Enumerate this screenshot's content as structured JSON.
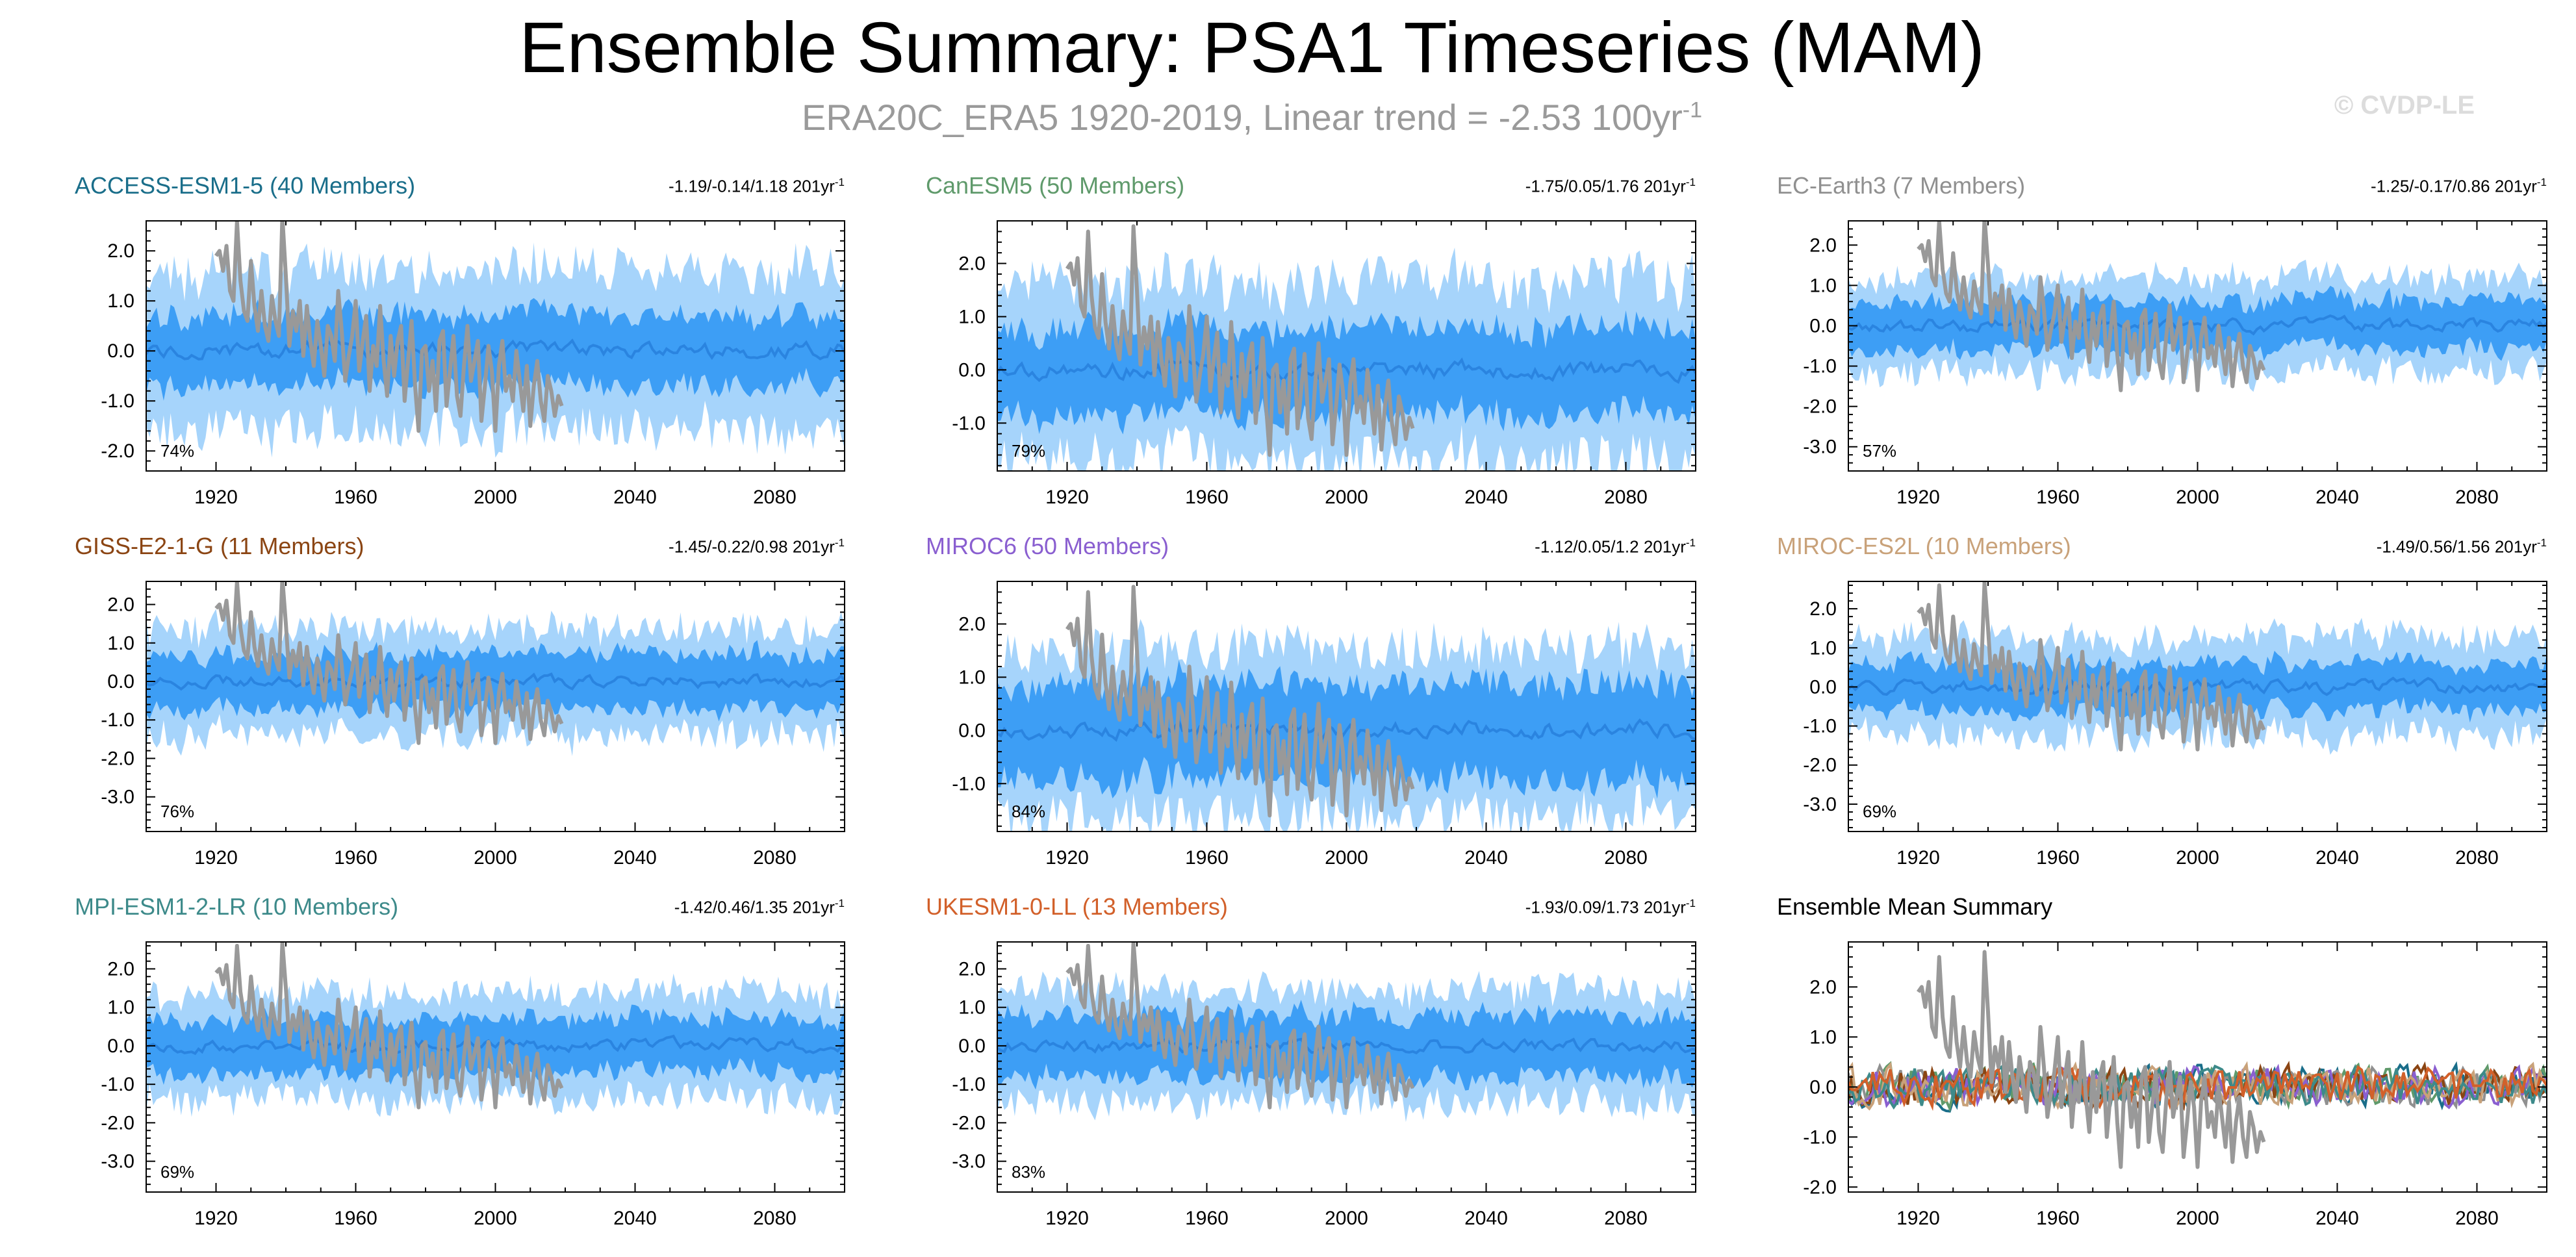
{
  "title": "Ensemble Summary: PSA1 Timeseries (MAM)",
  "subtitle": {
    "text": "ERA20C_ERA5 1920-2019, Linear trend = -2.53 100yr",
    "exponent": "-1"
  },
  "watermark": "© CVDP-LE",
  "colors": {
    "outer_band": "#a6d4fb",
    "inner_band": "#3d9ef5",
    "mean_line": "#2a84e0",
    "observations": "#999999"
  },
  "chart_data": [
    {
      "type": "line",
      "model": "ACCESS-ESM1-5 (40 Members)",
      "title_color": "#1a6e8a",
      "stats": "-1.19/-0.14/1.18 201yr",
      "stats_exponent": "-1",
      "percent": "74%",
      "ylim": [
        -2.4,
        2.6
      ],
      "yticks": [
        -2.0,
        -1.0,
        0.0,
        1.0,
        2.0
      ],
      "ytick_labels": [
        "-2.0",
        "-1.0",
        "0.0",
        "1.0",
        "2.0"
      ],
      "xlim": [
        1900,
        2100
      ],
      "xticks": [
        1920,
        1960,
        2000,
        2040,
        2080
      ],
      "xtick_labels": [
        "1920",
        "1960",
        "2000",
        "2040",
        "2080"
      ],
      "band_outer": 1.5,
      "band_inner": 0.7,
      "seed": 11
    },
    {
      "type": "line",
      "model": "CanESM5 (50 Members)",
      "title_color": "#5f9a6b",
      "stats": "-1.75/0.05/1.76 201yr",
      "stats_exponent": "-1",
      "percent": "79%",
      "ylim": [
        -1.9,
        2.8
      ],
      "yticks": [
        -1.0,
        0.0,
        1.0,
        2.0
      ],
      "ytick_labels": [
        "-1.0",
        "0.0",
        "1.0",
        "2.0"
      ],
      "xlim": [
        1900,
        2100
      ],
      "xticks": [
        1920,
        1960,
        2000,
        2040,
        2080
      ],
      "xtick_labels": [
        "1920",
        "1960",
        "2000",
        "2040",
        "2080"
      ],
      "band_outer": 1.6,
      "band_inner": 0.8,
      "seed": 23
    },
    {
      "type": "line",
      "model": "EC-Earth3 (7 Members)",
      "title_color": "#909090",
      "stats": "-1.25/-0.17/0.86 201yr",
      "stats_exponent": "-1",
      "percent": "57%",
      "ylim": [
        -3.6,
        2.6
      ],
      "yticks": [
        -3.0,
        -2.0,
        -1.0,
        0.0,
        1.0,
        2.0
      ],
      "ytick_labels": [
        "-3.0",
        "-2.0",
        "-1.0",
        "0.0",
        "1.0",
        "2.0"
      ],
      "xlim": [
        1900,
        2100
      ],
      "xticks": [
        1920,
        1960,
        2000,
        2040,
        2080
      ],
      "xtick_labels": [
        "1920",
        "1960",
        "2000",
        "2040",
        "2080"
      ],
      "band_outer": 1.1,
      "band_inner": 0.6,
      "seed": 37
    },
    {
      "type": "line",
      "model": "GISS-E2-1-G (11 Members)",
      "title_color": "#8b4513",
      "stats": "-1.45/-0.22/0.98 201yr",
      "stats_exponent": "-1",
      "percent": "76%",
      "ylim": [
        -3.9,
        2.6
      ],
      "yticks": [
        -3.0,
        -2.0,
        -1.0,
        0.0,
        1.0,
        2.0
      ],
      "ytick_labels": [
        "-3.0",
        "-2.0",
        "-1.0",
        "0.0",
        "1.0",
        "2.0"
      ],
      "xlim": [
        1900,
        2100
      ],
      "xticks": [
        1920,
        1960,
        2000,
        2040,
        2080
      ],
      "xtick_labels": [
        "1920",
        "1960",
        "2000",
        "2040",
        "2080"
      ],
      "band_outer": 1.3,
      "band_inner": 0.7,
      "seed": 41
    },
    {
      "type": "line",
      "model": "MIROC6 (50 Members)",
      "title_color": "#8a5fd0",
      "stats": "-1.12/0.05/1.2 201yr",
      "stats_exponent": "-1",
      "percent": "84%",
      "ylim": [
        -1.9,
        2.8
      ],
      "yticks": [
        -1.0,
        0.0,
        1.0,
        2.0
      ],
      "ytick_labels": [
        "-1.0",
        "0.0",
        "1.0",
        "2.0"
      ],
      "xlim": [
        1900,
        2100
      ],
      "xticks": [
        1920,
        1960,
        2000,
        2040,
        2080
      ],
      "xtick_labels": [
        "1920",
        "1960",
        "2000",
        "2040",
        "2080"
      ],
      "band_outer": 1.5,
      "band_inner": 0.9,
      "seed": 53
    },
    {
      "type": "line",
      "model": "MIROC-ES2L (10 Members)",
      "title_color": "#c9a27a",
      "stats": "-1.49/0.56/1.56 201yr",
      "stats_exponent": "-1",
      "percent": "69%",
      "ylim": [
        -3.7,
        2.7
      ],
      "yticks": [
        -3.0,
        -2.0,
        -1.0,
        0.0,
        1.0,
        2.0
      ],
      "ytick_labels": [
        "-3.0",
        "-2.0",
        "-1.0",
        "0.0",
        "1.0",
        "2.0"
      ],
      "xlim": [
        1900,
        2100
      ],
      "xticks": [
        1920,
        1960,
        2000,
        2040,
        2080
      ],
      "xtick_labels": [
        "1920",
        "1960",
        "2000",
        "2040",
        "2080"
      ],
      "band_outer": 1.2,
      "band_inner": 0.6,
      "seed": 67
    },
    {
      "type": "line",
      "model": "MPI-ESM1-2-LR (10 Members)",
      "title_color": "#3d8a8a",
      "stats": "-1.42/0.46/1.35 201yr",
      "stats_exponent": "-1",
      "percent": "69%",
      "ylim": [
        -3.8,
        2.7
      ],
      "yticks": [
        -3.0,
        -2.0,
        -1.0,
        0.0,
        1.0,
        2.0
      ],
      "ytick_labels": [
        "-3.0",
        "-2.0",
        "-1.0",
        "0.0",
        "1.0",
        "2.0"
      ],
      "xlim": [
        1900,
        2100
      ],
      "xticks": [
        1920,
        1960,
        2000,
        2040,
        2080
      ],
      "xtick_labels": [
        "1920",
        "1960",
        "2000",
        "2040",
        "2080"
      ],
      "band_outer": 1.3,
      "band_inner": 0.7,
      "seed": 79
    },
    {
      "type": "line",
      "model": "UKESM1-0-LL (13 Members)",
      "title_color": "#d2602a",
      "stats": "-1.93/0.09/1.73 201yr",
      "stats_exponent": "-1",
      "percent": "83%",
      "ylim": [
        -3.8,
        2.7
      ],
      "yticks": [
        -3.0,
        -2.0,
        -1.0,
        0.0,
        1.0,
        2.0
      ],
      "ytick_labels": [
        "-3.0",
        "-2.0",
        "-1.0",
        "0.0",
        "1.0",
        "2.0"
      ],
      "xlim": [
        1900,
        2100
      ],
      "xticks": [
        1920,
        1960,
        2000,
        2040,
        2080
      ],
      "xtick_labels": [
        "1920",
        "1960",
        "2000",
        "2040",
        "2080"
      ],
      "band_outer": 1.4,
      "band_inner": 0.8,
      "seed": 89
    },
    {
      "type": "line",
      "model": "Ensemble Mean Summary",
      "title_color": "#000000",
      "summary": true,
      "ylim": [
        -2.1,
        2.9
      ],
      "yticks": [
        -2.0,
        -1.0,
        0.0,
        1.0,
        2.0
      ],
      "ytick_labels": [
        "-2.0",
        "-1.0",
        "0.0",
        "1.0",
        "2.0"
      ],
      "xlim": [
        1900,
        2100
      ],
      "xticks": [
        1920,
        1960,
        2000,
        2040,
        2080
      ],
      "xtick_labels": [
        "1920",
        "1960",
        "2000",
        "2040",
        "2080"
      ],
      "series_colors": [
        "#1a6e8a",
        "#5f9a6b",
        "#909090",
        "#8b4513",
        "#8a5fd0",
        "#c9a27a",
        "#3d8a8a",
        "#d2602a"
      ],
      "series_amplitude": 0.35,
      "seed": 97
    }
  ],
  "observations": {
    "name": "ERA20C_ERA5",
    "years": [
      1920,
      1921,
      1922,
      1923,
      1924,
      1925,
      1926,
      1927,
      1928,
      1929,
      1930,
      1931,
      1932,
      1933,
      1934,
      1935,
      1936,
      1937,
      1938,
      1939,
      1940,
      1941,
      1942,
      1943,
      1944,
      1945,
      1946,
      1947,
      1948,
      1949,
      1950,
      1951,
      1952,
      1953,
      1954,
      1955,
      1956,
      1957,
      1958,
      1959,
      1960,
      1961,
      1962,
      1963,
      1964,
      1965,
      1966,
      1967,
      1968,
      1969,
      1970,
      1971,
      1972,
      1973,
      1974,
      1975,
      1976,
      1977,
      1978,
      1979,
      1980,
      1981,
      1982,
      1983,
      1984,
      1985,
      1986,
      1987,
      1988,
      1989,
      1990,
      1991,
      1992,
      1993,
      1994,
      1995,
      1996,
      1997,
      1998,
      1999,
      2000,
      2001,
      2002,
      2003,
      2004,
      2005,
      2006,
      2007,
      2008,
      2009,
      2010,
      2011,
      2012,
      2013,
      2014,
      2015,
      2016,
      2017,
      2018,
      2019
    ],
    "values": [
      1.9,
      2.0,
      1.6,
      2.1,
      1.2,
      1.0,
      2.6,
      1.4,
      0.8,
      0.6,
      1.8,
      0.9,
      0.4,
      1.2,
      0.5,
      0.2,
      1.1,
      0.6,
      0.3,
      2.7,
      1.5,
      0.1,
      0.8,
      0.4,
      1.0,
      -0.1,
      0.9,
      0.2,
      -0.3,
      0.6,
      0.1,
      -0.5,
      0.5,
      0.3,
      -0.2,
      1.2,
      0.4,
      -0.6,
      -0.1,
      0.3,
      1.0,
      -0.4,
      0.2,
      0.7,
      -0.8,
      0.1,
      -0.3,
      0.9,
      -0.2,
      -0.9,
      0.3,
      -0.5,
      0.2,
      0.5,
      -1.0,
      -0.2,
      0.6,
      -0.7,
      -1.6,
      0.0,
      0.1,
      -0.8,
      -0.2,
      -1.2,
      0.2,
      0.4,
      -1.1,
      -0.4,
      0.3,
      -0.9,
      -1.3,
      -0.3,
      0.5,
      -0.6,
      -0.2,
      0.2,
      -1.4,
      -0.7,
      0.1,
      -0.4,
      -1.6,
      -0.3,
      0.2,
      -0.8,
      -0.5,
      -1.0,
      0.0,
      -0.6,
      -1.2,
      -0.3,
      -1.5,
      -0.7,
      -0.2,
      -1.0,
      -1.4,
      -0.5,
      -0.8,
      -1.3,
      -0.9,
      -1.1
    ]
  }
}
